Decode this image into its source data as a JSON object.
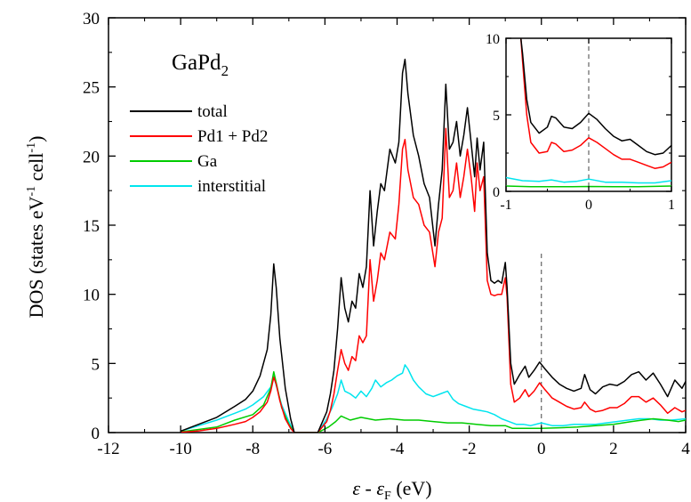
{
  "chart_data": [
    {
      "type": "line",
      "compound_label": {
        "main": "GaPd",
        "sub": "2"
      },
      "xlabel": {
        "eps": "ε",
        "minus": " - ",
        "eps_f": "ε",
        "sub_f": "F",
        "unit": " (eV)"
      },
      "ylabel": {
        "a": "DOS (states eV",
        "sup1": "-1",
        "b": " cell",
        "sup2": "-1",
        "c": ")"
      },
      "xlim": [
        -12,
        4
      ],
      "ylim": [
        0,
        30
      ],
      "xticks": [
        "-12",
        "-10",
        "-8",
        "-6",
        "-4",
        "-2",
        "0",
        "2",
        "4"
      ],
      "yticks": [
        "0",
        "5",
        "10",
        "15",
        "20",
        "25",
        "30"
      ],
      "fermi_level": 0,
      "legend": {
        "placement": "upper-left"
      },
      "series": [
        {
          "name": "total",
          "color": "#000000",
          "x": [
            -10,
            -9.5,
            -9,
            -8.5,
            -8.2,
            -8,
            -7.8,
            -7.6,
            -7.5,
            -7.42,
            -7.35,
            -7.25,
            -7.1,
            -6.95,
            -6.85,
            -6.2,
            -5.95,
            -5.85,
            -5.75,
            -5.65,
            -5.55,
            -5.45,
            -5.35,
            -5.25,
            -5.15,
            -5.05,
            -4.95,
            -4.85,
            -4.75,
            -4.65,
            -4.55,
            -4.45,
            -4.35,
            -4.2,
            -4.05,
            -3.95,
            -3.85,
            -3.78,
            -3.7,
            -3.55,
            -3.4,
            -3.25,
            -3.1,
            -2.95,
            -2.85,
            -2.75,
            -2.65,
            -2.55,
            -2.45,
            -2.35,
            -2.25,
            -2.15,
            -2.05,
            -1.95,
            -1.85,
            -1.78,
            -1.7,
            -1.6,
            -1.5,
            -1.4,
            -1.3,
            -1.2,
            -1.1,
            -1.0,
            -0.95,
            -0.85,
            -0.75,
            -0.6,
            -0.45,
            -0.35,
            -0.2,
            -0.05,
            0.1,
            0.3,
            0.5,
            0.7,
            0.9,
            1.1,
            1.2,
            1.35,
            1.5,
            1.7,
            1.9,
            2.1,
            2.3,
            2.5,
            2.7,
            2.9,
            3.1,
            3.3,
            3.5,
            3.7,
            3.9,
            4.0
          ],
          "values": [
            0.1,
            0.6,
            1.1,
            1.9,
            2.4,
            3.0,
            4.1,
            6.0,
            8.5,
            12.2,
            10.5,
            6.8,
            3.2,
            1.0,
            0.0,
            0.0,
            1.5,
            2.8,
            4.5,
            7.5,
            11.2,
            9.0,
            8.0,
            9.5,
            9.0,
            11.5,
            10.5,
            12.0,
            17.5,
            13.5,
            16.0,
            18.0,
            17.5,
            20.5,
            19.5,
            21.0,
            26.0,
            27.0,
            24.5,
            21.5,
            20.0,
            18.0,
            17.0,
            13.5,
            16.5,
            19.0,
            25.2,
            20.5,
            21.0,
            22.5,
            20.0,
            21.5,
            23.5,
            21.0,
            18.5,
            21.3,
            19.0,
            21.0,
            13.0,
            11.0,
            10.8,
            11.0,
            10.8,
            12.3,
            10.5,
            5.0,
            3.5,
            4.2,
            4.8,
            4.0,
            4.5,
            5.1,
            4.6,
            4.0,
            3.5,
            3.2,
            3.0,
            3.2,
            4.2,
            3.1,
            2.8,
            3.3,
            3.5,
            3.4,
            3.7,
            4.2,
            4.4,
            3.8,
            4.3,
            3.5,
            2.6,
            3.8,
            3.2,
            3.7
          ]
        },
        {
          "name": "Pd1 + Pd2",
          "color": "#ff0000",
          "x": [
            -10,
            -9.5,
            -9,
            -8.5,
            -8.2,
            -8,
            -7.8,
            -7.6,
            -7.5,
            -7.42,
            -7.35,
            -7.25,
            -7.1,
            -6.95,
            -6.85,
            -6.2,
            -5.95,
            -5.85,
            -5.75,
            -5.65,
            -5.55,
            -5.45,
            -5.35,
            -5.25,
            -5.15,
            -5.05,
            -4.95,
            -4.85,
            -4.75,
            -4.65,
            -4.55,
            -4.45,
            -4.35,
            -4.2,
            -4.05,
            -3.95,
            -3.85,
            -3.78,
            -3.7,
            -3.55,
            -3.4,
            -3.25,
            -3.1,
            -2.95,
            -2.85,
            -2.75,
            -2.65,
            -2.55,
            -2.45,
            -2.35,
            -2.25,
            -2.15,
            -2.05,
            -1.95,
            -1.85,
            -1.78,
            -1.7,
            -1.6,
            -1.5,
            -1.4,
            -1.3,
            -1.2,
            -1.1,
            -1.0,
            -0.95,
            -0.85,
            -0.75,
            -0.6,
            -0.45,
            -0.35,
            -0.2,
            -0.05,
            0.1,
            0.3,
            0.5,
            0.7,
            0.9,
            1.1,
            1.2,
            1.35,
            1.5,
            1.7,
            1.9,
            2.1,
            2.3,
            2.5,
            2.7,
            2.9,
            3.1,
            3.3,
            3.5,
            3.7,
            3.9,
            4.0
          ],
          "values": [
            0.02,
            0.12,
            0.3,
            0.6,
            0.8,
            1.1,
            1.5,
            2.2,
            3.0,
            4.0,
            3.5,
            2.3,
            1.0,
            0.3,
            0.0,
            0.0,
            0.8,
            1.6,
            2.8,
            4.5,
            6.0,
            5.0,
            4.5,
            5.5,
            5.2,
            7.0,
            6.5,
            7.0,
            12.5,
            9.5,
            11.0,
            13.0,
            12.5,
            14.5,
            14.0,
            16.5,
            20.5,
            21.2,
            19.0,
            17.0,
            16.5,
            15.0,
            14.5,
            12.0,
            14.5,
            15.5,
            22.0,
            17.0,
            17.5,
            19.5,
            17.0,
            18.5,
            20.5,
            18.5,
            16.0,
            19.5,
            17.5,
            18.5,
            11.0,
            10.0,
            9.9,
            10.0,
            10.0,
            11.2,
            9.8,
            3.5,
            2.2,
            2.5,
            3.1,
            2.6,
            3.0,
            3.6,
            3.1,
            2.5,
            2.2,
            1.9,
            1.7,
            1.8,
            2.2,
            1.7,
            1.5,
            1.6,
            1.8,
            1.8,
            2.1,
            2.6,
            2.6,
            2.2,
            2.5,
            2.0,
            1.4,
            1.8,
            1.5,
            1.6
          ]
        },
        {
          "name": "Ga",
          "color": "#00cc00",
          "x": [
            -10,
            -9,
            -8.5,
            -8,
            -7.7,
            -7.5,
            -7.42,
            -7.35,
            -7.2,
            -7.0,
            -6.85,
            -6.2,
            -5.9,
            -5.7,
            -5.55,
            -5.3,
            -5.0,
            -4.6,
            -4.2,
            -3.8,
            -3.4,
            -3.0,
            -2.6,
            -2.2,
            -1.8,
            -1.4,
            -1.0,
            -0.8,
            -0.5,
            0.0,
            0.5,
            1.0,
            1.5,
            2.0,
            2.5,
            2.8,
            3.1,
            3.5,
            3.8,
            4.0
          ],
          "values": [
            0.05,
            0.4,
            0.9,
            1.3,
            2.0,
            3.2,
            4.4,
            3.6,
            1.8,
            0.6,
            0.0,
            0.0,
            0.4,
            0.8,
            1.2,
            0.9,
            1.1,
            0.9,
            1.0,
            0.9,
            0.9,
            0.8,
            0.7,
            0.7,
            0.6,
            0.5,
            0.5,
            0.3,
            0.3,
            0.3,
            0.35,
            0.4,
            0.5,
            0.6,
            0.8,
            0.9,
            1.0,
            0.9,
            0.8,
            0.9
          ]
        },
        {
          "name": "interstitial",
          "color": "#00e5ee",
          "x": [
            -10,
            -9.5,
            -9,
            -8.5,
            -8.2,
            -8,
            -7.7,
            -7.5,
            -7.42,
            -7.35,
            -7.2,
            -7.0,
            -6.85,
            -6.2,
            -5.95,
            -5.8,
            -5.65,
            -5.55,
            -5.45,
            -5.3,
            -5.15,
            -5.0,
            -4.85,
            -4.7,
            -4.6,
            -4.45,
            -4.3,
            -4.15,
            -4.0,
            -3.85,
            -3.78,
            -3.7,
            -3.55,
            -3.4,
            -3.2,
            -3.0,
            -2.8,
            -2.6,
            -2.45,
            -2.3,
            -2.1,
            -1.9,
            -1.7,
            -1.5,
            -1.3,
            -1.1,
            -0.9,
            -0.7,
            -0.5,
            -0.3,
            0.0,
            0.3,
            0.6,
            0.9,
            1.2,
            1.5,
            1.8,
            2.1,
            2.4,
            2.7,
            3.0,
            3.3,
            3.6,
            4.0
          ],
          "values": [
            0.1,
            0.5,
            0.9,
            1.4,
            1.7,
            2.0,
            2.6,
            3.3,
            4.1,
            3.4,
            2.0,
            0.8,
            0.0,
            0.0,
            1.0,
            1.8,
            2.8,
            3.8,
            3.0,
            2.8,
            2.5,
            3.0,
            2.6,
            3.2,
            3.8,
            3.3,
            3.6,
            3.8,
            4.1,
            4.3,
            4.9,
            4.6,
            3.8,
            3.3,
            2.8,
            2.6,
            2.8,
            3.0,
            2.4,
            2.1,
            1.9,
            1.7,
            1.6,
            1.5,
            1.3,
            1.0,
            0.8,
            0.6,
            0.6,
            0.5,
            0.7,
            0.5,
            0.5,
            0.6,
            0.6,
            0.6,
            0.7,
            0.8,
            0.9,
            1.0,
            1.0,
            0.9,
            0.9,
            1.0
          ]
        }
      ]
    },
    {
      "type": "line",
      "panel": "inset",
      "xlim": [
        -1,
        1
      ],
      "ylim": [
        0,
        10
      ],
      "xticks": [
        "-1",
        "0",
        "1"
      ],
      "yticks": [
        "0",
        "5",
        "10"
      ],
      "fermi_level": 0,
      "series": [
        {
          "ref": "total",
          "color": "#000000",
          "x": [
            -0.82,
            -0.8,
            -0.75,
            -0.7,
            -0.6,
            -0.5,
            -0.45,
            -0.4,
            -0.3,
            -0.2,
            -0.1,
            0.0,
            0.1,
            0.2,
            0.3,
            0.4,
            0.5,
            0.6,
            0.7,
            0.8,
            0.9,
            1.0
          ],
          "values": [
            10,
            9.0,
            6.0,
            4.5,
            3.8,
            4.2,
            4.9,
            4.8,
            4.2,
            4.1,
            4.5,
            5.1,
            4.7,
            4.1,
            3.6,
            3.3,
            3.4,
            3.0,
            2.6,
            2.4,
            2.5,
            3.0
          ]
        },
        {
          "ref": "Pd1 + Pd2",
          "color": "#ff0000",
          "x": [
            -0.82,
            -0.8,
            -0.75,
            -0.7,
            -0.6,
            -0.5,
            -0.45,
            -0.4,
            -0.3,
            -0.2,
            -0.1,
            0.0,
            0.1,
            0.2,
            0.3,
            0.4,
            0.5,
            0.6,
            0.7,
            0.8,
            0.9,
            1.0
          ],
          "values": [
            10,
            8.5,
            5.0,
            3.2,
            2.5,
            2.6,
            3.2,
            3.1,
            2.6,
            2.7,
            3.0,
            3.5,
            3.2,
            2.8,
            2.4,
            2.1,
            2.1,
            1.9,
            1.7,
            1.5,
            1.6,
            1.9
          ]
        },
        {
          "ref": "Ga",
          "color": "#00cc00",
          "x": [
            -1.0,
            -0.7,
            -0.4,
            -0.2,
            0.0,
            0.3,
            0.6,
            1.0
          ],
          "values": [
            0.35,
            0.3,
            0.3,
            0.3,
            0.32,
            0.3,
            0.3,
            0.35
          ]
        },
        {
          "ref": "interstitial",
          "color": "#00e5ee",
          "x": [
            -1.0,
            -0.8,
            -0.6,
            -0.45,
            -0.3,
            -0.15,
            0.0,
            0.2,
            0.4,
            0.6,
            0.8,
            1.0
          ],
          "values": [
            0.9,
            0.7,
            0.65,
            0.75,
            0.6,
            0.65,
            0.8,
            0.6,
            0.6,
            0.55,
            0.55,
            0.7
          ]
        }
      ]
    }
  ]
}
